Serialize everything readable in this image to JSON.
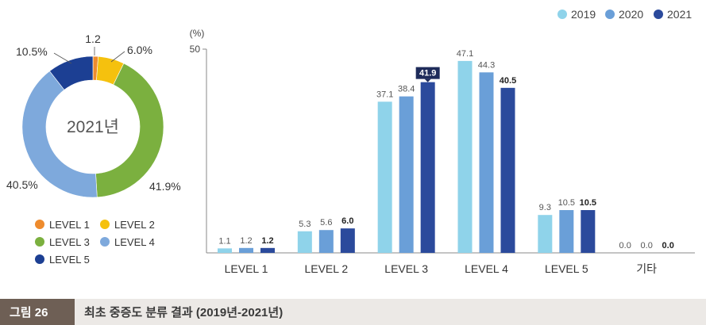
{
  "chart_data": [
    {
      "type": "pie",
      "variant": "donut",
      "center_label": "2021년",
      "slices": [
        {
          "name": "LEVEL 1",
          "value": 1.2,
          "label": "1.2",
          "color": "#ee8b2d"
        },
        {
          "name": "LEVEL 2",
          "value": 6.0,
          "label": "6.0%",
          "color": "#f5c10e"
        },
        {
          "name": "LEVEL 3",
          "value": 41.9,
          "label": "41.9%",
          "color": "#7bb03f"
        },
        {
          "name": "LEVEL 4",
          "value": 40.5,
          "label": "40.5%",
          "color": "#7ea9dc"
        },
        {
          "name": "LEVEL 5",
          "value": 10.5,
          "label": "10.5%",
          "color": "#1c3f93"
        }
      ],
      "legend_placement": "bottom"
    },
    {
      "type": "bar",
      "ylabel": "(%)",
      "ylim": [
        0,
        50
      ],
      "yticks": [
        50
      ],
      "categories": [
        "LEVEL 1",
        "LEVEL 2",
        "LEVEL 3",
        "LEVEL 4",
        "LEVEL 5",
        "기타"
      ],
      "series": [
        {
          "name": "2019",
          "color": "#8fd3ea",
          "values": [
            1.1,
            5.3,
            37.1,
            47.1,
            9.3,
            0.0
          ],
          "labels": [
            "1.1",
            "5.3",
            "37.1",
            "47.1",
            "9.3",
            "0.0"
          ]
        },
        {
          "name": "2020",
          "color": "#6a9fd8",
          "values": [
            1.2,
            5.6,
            38.4,
            44.3,
            10.5,
            0.0
          ],
          "labels": [
            "1.2",
            "5.6",
            "38.4",
            "44.3",
            "10.5",
            "0.0"
          ]
        },
        {
          "name": "2021",
          "color": "#2b4a9c",
          "values": [
            1.2,
            6.0,
            41.9,
            40.5,
            10.5,
            0.0
          ],
          "labels": [
            "1.2",
            "6.0",
            "41.9",
            "40.5",
            "10.5",
            "0.0"
          ]
        }
      ],
      "highlight": {
        "series": 2,
        "category": 2
      },
      "legend_placement": "top-right",
      "grid": false
    }
  ],
  "caption": {
    "label": "그림 26",
    "title": "최초 중증도 분류 결과 (2019년-2021년)"
  }
}
